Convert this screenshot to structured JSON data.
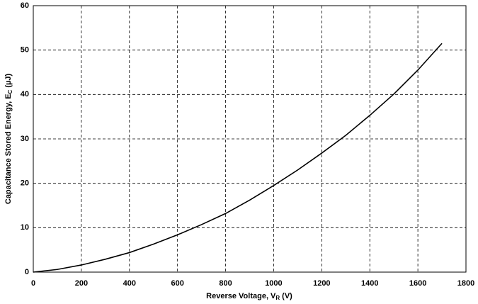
{
  "chart_data": {
    "type": "line",
    "xlabel": "Reverse Voltage, V",
    "xlabel_sub": "R",
    "xlabel_unit": "(V)",
    "ylabel": "Capacitance Stored Energy, E",
    "ylabel_sub": "C",
    "ylabel_unit": "(µJ)",
    "x": [
      0,
      100,
      200,
      300,
      400,
      500,
      600,
      700,
      800,
      900,
      1000,
      1100,
      1200,
      1300,
      1400,
      1500,
      1600,
      1700
    ],
    "values": [
      0,
      0.6,
      1.6,
      2.9,
      4.4,
      6.3,
      8.4,
      10.7,
      13.2,
      16.2,
      19.5,
      23,
      26.8,
      30.8,
      35.3,
      40.1,
      45.5,
      51.5
    ],
    "color": "#000000",
    "xlim": [
      0,
      1800
    ],
    "xticks": [
      0,
      200,
      400,
      600,
      800,
      1000,
      1200,
      1400,
      1600,
      1800
    ],
    "ylim": [
      0,
      60
    ],
    "yticks": [
      0,
      10,
      20,
      30,
      40,
      50,
      60
    ],
    "grid": true
  }
}
